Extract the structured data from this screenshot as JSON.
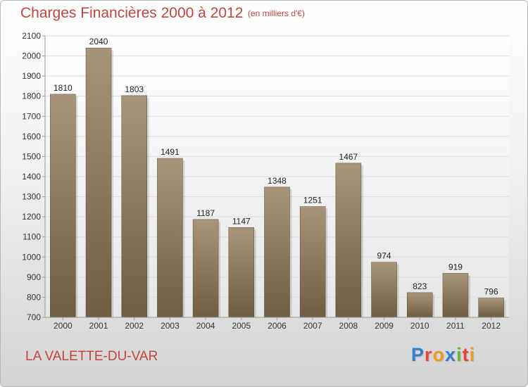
{
  "title": "Charges Financières 2000 à 2012",
  "subtitle": "(en milliers d'€)",
  "location": "LA VALETTE-DU-VAR",
  "logo": {
    "text": "Proxiti",
    "colors": [
      "#3a7fcf",
      "#e8443a",
      "#f29a1e",
      "#3a7fcf",
      "#6bb53b",
      "#e8443a",
      "#f29a1e"
    ]
  },
  "colors": {
    "bar_top": "#a7957a",
    "bar_bottom": "#6e5d43",
    "accent": "#c4443c"
  },
  "chart_data": {
    "type": "bar",
    "categories": [
      "2000",
      "2001",
      "2002",
      "2003",
      "2004",
      "2005",
      "2006",
      "2007",
      "2008",
      "2009",
      "2010",
      "2011",
      "2012"
    ],
    "values": [
      1810,
      2040,
      1803,
      1491,
      1187,
      1147,
      1348,
      1251,
      1467,
      974,
      823,
      919,
      796
    ],
    "ylim": [
      700,
      2100
    ],
    "yticks": [
      700,
      800,
      900,
      1000,
      1100,
      1200,
      1300,
      1400,
      1500,
      1600,
      1700,
      1800,
      1900,
      2000,
      2100
    ],
    "grid": true,
    "data_labels": true
  }
}
